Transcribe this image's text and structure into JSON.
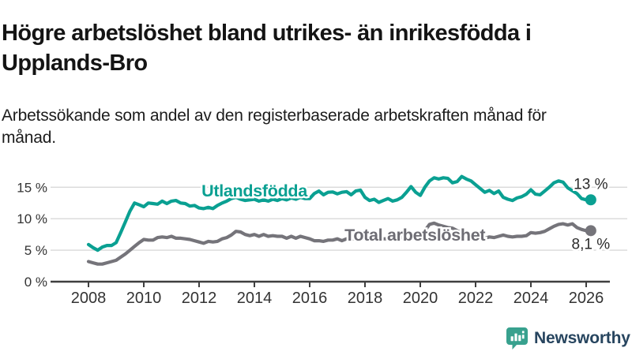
{
  "header": {
    "title": "Högre arbetslöshet bland utrikes- än inrikesfödda i Upplands-Bro",
    "subtitle": "Arbetssökande som andel av den registerbaserade arbetskraften månad för månad."
  },
  "branding": {
    "name": "Newsworthy",
    "icon": "bar-chart-speech-bubble",
    "icon_color": "#38a18e",
    "text_color": "#27455f"
  },
  "chart_data": {
    "type": "line",
    "title": "Högre arbetslöshet bland utrikes- än inrikesfödda i Upplands-Bro",
    "subtitle": "Arbetssökande som andel av den registerbaserade arbetskraften månad för månad.",
    "unit": "%",
    "grid": "horizontal",
    "legend_position": "inline-labels",
    "x_axis": {
      "start_year": 2008,
      "end_year": 2026.17,
      "tick_years": [
        2008,
        2010,
        2012,
        2014,
        2016,
        2018,
        2020,
        2022,
        2024,
        2026
      ],
      "tick_labels": [
        "2008",
        "2010",
        "2012",
        "2014",
        "2016",
        "2018",
        "2020",
        "2022",
        "2024",
        "2026"
      ]
    },
    "y_axis": {
      "min": 0,
      "max": 17.5,
      "ticks": [
        0,
        5,
        10,
        15
      ],
      "tick_labels": [
        "0 %",
        "5 %",
        "10 %",
        "15 %"
      ]
    },
    "points_per_year": 6,
    "series": [
      {
        "name": "Total arbetslöshet",
        "color": "#75747a",
        "label_color": "#6e6d74",
        "end_label": "8,1 %",
        "end_value": 8.1,
        "label_pos": {
          "year": 2017.26,
          "value": 6.5
        },
        "end_label_side": "below",
        "values": [
          3.2,
          3.0,
          2.8,
          2.8,
          3.0,
          3.2,
          3.4,
          3.9,
          4.4,
          5.0,
          5.6,
          6.2,
          6.7,
          6.6,
          6.6,
          7.0,
          7.1,
          7.0,
          7.2,
          6.9,
          6.9,
          6.8,
          6.7,
          6.5,
          6.3,
          6.1,
          6.4,
          6.3,
          6.4,
          6.8,
          7.0,
          7.4,
          8.0,
          7.9,
          7.5,
          7.3,
          7.5,
          7.2,
          7.5,
          7.2,
          7.3,
          7.2,
          7.2,
          6.9,
          7.2,
          6.9,
          7.2,
          7.0,
          6.8,
          6.5,
          6.5,
          6.4,
          6.6,
          6.6,
          6.8,
          6.5,
          6.8,
          6.7,
          6.9,
          6.9,
          6.9,
          6.7,
          6.7,
          6.6,
          6.8,
          6.8,
          7.0,
          6.8,
          7.0,
          7.2,
          7.4,
          7.2,
          7.4,
          8.1,
          9.1,
          9.3,
          9.0,
          8.8,
          8.6,
          8.5,
          8.1,
          7.8,
          7.6,
          7.4,
          7.2,
          7.0,
          6.9,
          7.1,
          7.0,
          7.2,
          7.4,
          7.2,
          7.1,
          7.2,
          7.2,
          7.3,
          7.8,
          7.7,
          7.8,
          8.0,
          8.4,
          8.8,
          9.1,
          9.2,
          9.0,
          9.2,
          8.6,
          8.3,
          8.1,
          8.1
        ]
      },
      {
        "name": "Utlandsfödda",
        "color": "#0aa092",
        "label_color": "#0aa092",
        "end_label": "13 %",
        "end_value": 13.0,
        "label_pos": {
          "year": 2012.09,
          "value": 13.55
        },
        "end_label_side": "above",
        "values": [
          5.9,
          5.4,
          5.0,
          5.5,
          5.75,
          5.75,
          6.2,
          7.8,
          9.5,
          11.2,
          12.5,
          12.2,
          11.9,
          12.5,
          12.4,
          12.3,
          12.8,
          12.4,
          12.8,
          12.9,
          12.5,
          12.4,
          12.0,
          12.1,
          11.7,
          11.6,
          11.8,
          11.6,
          12.1,
          12.5,
          12.8,
          13.2,
          13.4,
          13.1,
          12.9,
          13.0,
          13.1,
          12.8,
          13.0,
          12.8,
          13.1,
          12.9,
          13.2,
          13.0,
          13.3,
          13.1,
          13.4,
          13.2,
          13.2,
          14.0,
          14.4,
          13.8,
          14.2,
          14.25,
          13.95,
          14.2,
          14.3,
          13.8,
          14.4,
          14.55,
          13.4,
          12.9,
          13.1,
          12.6,
          12.9,
          13.2,
          12.8,
          13.0,
          13.4,
          14.2,
          15.1,
          14.2,
          13.7,
          15.0,
          16.0,
          16.5,
          16.3,
          16.5,
          16.4,
          15.7,
          15.9,
          16.7,
          16.3,
          16.0,
          15.4,
          14.8,
          14.2,
          14.5,
          14.0,
          14.4,
          13.4,
          13.1,
          12.9,
          13.3,
          13.5,
          13.9,
          14.6,
          13.9,
          13.8,
          14.4,
          15.0,
          15.7,
          16.0,
          15.8,
          14.9,
          14.45,
          14.0,
          13.2,
          13.0,
          13.0
        ]
      }
    ],
    "colors": {
      "grid": "#d9d9d9",
      "axis": "#3f3f3f",
      "tick_text": "#333333",
      "annotation_text": "#2b2b2b"
    }
  }
}
